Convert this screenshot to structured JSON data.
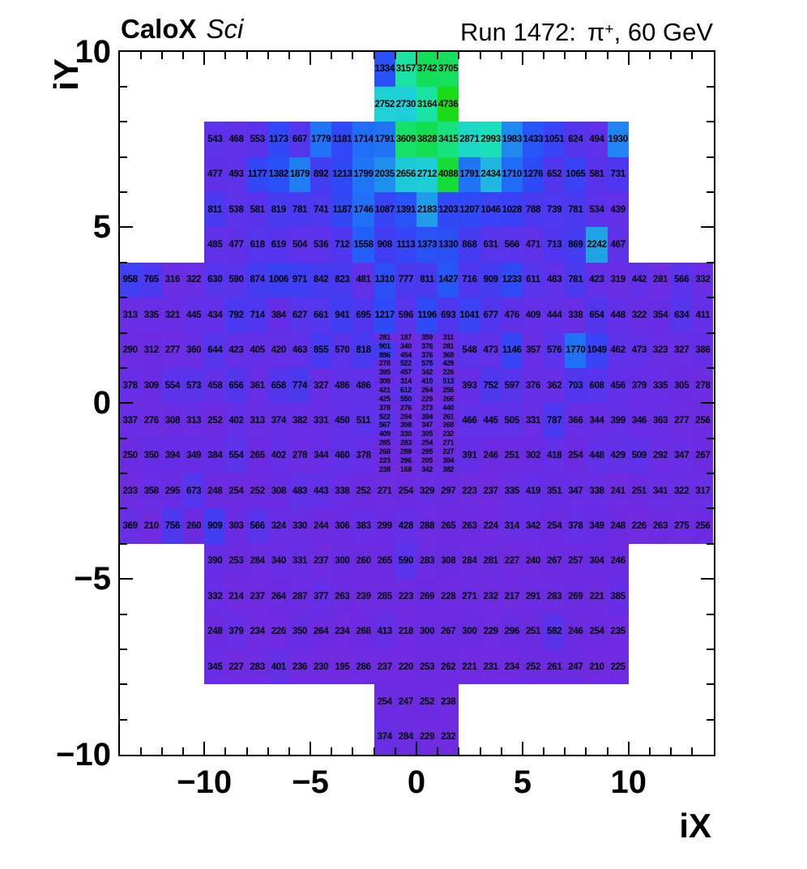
{
  "header": {
    "experiment": "CaloX",
    "experiment_sub": "Sci",
    "run": {
      "prefix": "Run 1472:",
      "particle": "π",
      "superscript": "+",
      "suffix": ", 60 GeV"
    }
  },
  "chart_data": {
    "type": "heatmap",
    "title_left": "CaloX Sci",
    "title_right": "Run 1472: π+, 60 GeV",
    "xlabel": "iX",
    "ylabel": "iY",
    "x_range": [
      -14,
      14
    ],
    "y_range": [
      -10,
      10
    ],
    "n_cols": 28,
    "n_rows": 20,
    "x_ticks": [
      -10,
      -5,
      0,
      5,
      10
    ],
    "y_ticks": [
      10,
      5,
      0,
      -5,
      -10
    ],
    "grid": false,
    "legend": "none",
    "text_color": "#000000",
    "palette_stops": [
      [
        0,
        "#7B2AD6"
      ],
      [
        250,
        "#6D2BE1"
      ],
      [
        500,
        "#5F31EA"
      ],
      [
        750,
        "#4D38F0"
      ],
      [
        1000,
        "#3C40F4"
      ],
      [
        1250,
        "#2E4BF7"
      ],
      [
        1500,
        "#2359F8"
      ],
      [
        1750,
        "#1F70F6"
      ],
      [
        2000,
        "#1F8BEF"
      ],
      [
        2250,
        "#20A4E5"
      ],
      [
        2500,
        "#1FBDDE"
      ],
      [
        2750,
        "#1DD1D5"
      ],
      [
        3000,
        "#1BDFB9"
      ],
      [
        3250,
        "#19E495"
      ],
      [
        3500,
        "#16E175"
      ],
      [
        3750,
        "#13DE58"
      ],
      [
        4000,
        "#14DC3D"
      ],
      [
        4300,
        "#17DB29"
      ],
      [
        4800,
        "#1CDB13"
      ]
    ],
    "rows": [
      {
        "iy": 9,
        "segments": [
          {
            "start_col": 12,
            "values": [
              1334,
              3157,
              3742,
              3705
            ]
          }
        ]
      },
      {
        "iy": 8,
        "segments": [
          {
            "start_col": 12,
            "values": [
              2752,
              2730,
              3164,
              4736
            ]
          }
        ]
      },
      {
        "iy": 7,
        "segments": [
          {
            "start_col": 4,
            "values": [
              543,
              468,
              553,
              1173,
              667,
              1779,
              1181,
              1714,
              1791,
              3609,
              3828,
              3415,
              2871,
              2993,
              1983,
              1433,
              1051,
              624,
              494,
              1930
            ]
          }
        ]
      },
      {
        "iy": 6,
        "segments": [
          {
            "start_col": 4,
            "values": [
              477,
              493,
              1177,
              1382,
              1879,
              892,
              1213,
              1799,
              2035,
              2656,
              2712,
              4088,
              1791,
              2434,
              1710,
              1276,
              652,
              1065,
              581,
              731
            ]
          }
        ]
      },
      {
        "iy": 5,
        "segments": [
          {
            "start_col": 4,
            "values": [
              811,
              538,
              581,
              819,
              781,
              741,
              1187,
              1746,
              1087,
              1391,
              2183,
              1203,
              1207,
              1046,
              1028,
              788,
              739,
              781,
              534,
              439
            ]
          }
        ]
      },
      {
        "iy": 4,
        "segments": [
          {
            "start_col": 4,
            "values": [
              485,
              477,
              618,
              619,
              504,
              536,
              712,
              1558,
              908,
              1113,
              1373,
              1330,
              868,
              631,
              566,
              471,
              713,
              869,
              2242,
              467
            ]
          }
        ]
      },
      {
        "iy": 3,
        "segments": [
          {
            "start_col": 0,
            "values": [
              958,
              765,
              316,
              322,
              630,
              590,
              874,
              1006,
              971,
              842,
              823,
              481,
              1310,
              777,
              811,
              1427,
              716,
              909,
              1233,
              611,
              483,
              781,
              423,
              319,
              442,
              281,
              566,
              332
            ]
          }
        ]
      },
      {
        "iy": 2,
        "segments": [
          {
            "start_col": 0,
            "values": [
              313,
              335,
              321,
              445,
              434,
              792,
              714,
              384,
              627,
              661,
              941,
              695,
              1217,
              596,
              1196,
              693,
              1041,
              677,
              476,
              409,
              444,
              338,
              654,
              448,
              322,
              354,
              634,
              411
            ]
          }
        ]
      },
      {
        "iy": 1,
        "segments": [
          {
            "start_col": 0,
            "values": [
              290,
              312,
              277,
              360,
              644,
              423,
              405,
              420,
              463,
              855,
              570,
              818
            ]
          },
          {
            "start_col": 16,
            "values": [
              548,
              473,
              1146,
              357,
              576,
              1770,
              1049,
              462,
              473,
              323,
              327,
              386
            ]
          }
        ]
      },
      {
        "iy": 0,
        "segments": [
          {
            "start_col": 0,
            "values": [
              378,
              309,
              554,
              573,
              458,
              656,
              361,
              658,
              774,
              327,
              486,
              486
            ]
          },
          {
            "start_col": 16,
            "values": [
              393,
              752,
              597,
              376,
              362,
              703,
              608,
              456,
              379,
              335,
              305,
              278
            ]
          }
        ]
      },
      {
        "iy": -1,
        "segments": [
          {
            "start_col": 0,
            "values": [
              337,
              276,
              308,
              313,
              252,
              402,
              313,
              374,
              382,
              331,
              450,
              511
            ]
          },
          {
            "start_col": 16,
            "values": [
              466,
              445,
              505,
              331,
              787,
              366,
              344,
              399,
              346,
              363,
              277,
              256
            ]
          }
        ]
      },
      {
        "iy": -2,
        "segments": [
          {
            "start_col": 0,
            "values": [
              250,
              350,
              394,
              349,
              384,
              554,
              265,
              402,
              278,
              344,
              460,
              378
            ]
          },
          {
            "start_col": 16,
            "values": [
              391,
              246,
              251,
              302,
              418,
              254,
              448,
              429,
              509,
              292,
              347,
              267
            ]
          }
        ]
      },
      {
        "iy": -3,
        "segments": [
          {
            "start_col": 0,
            "values": [
              233,
              358,
              295,
              673,
              248,
              254,
              252,
              308,
              483,
              443,
              338,
              252,
              271,
              254,
              329,
              297,
              223,
              237,
              335,
              419,
              351,
              347,
              338,
              241,
              251,
              341,
              322,
              317
            ]
          }
        ]
      },
      {
        "iy": -4,
        "segments": [
          {
            "start_col": 0,
            "values": [
              369,
              210,
              756,
              260,
              909,
              303,
              566,
              324,
              330,
              244,
              306,
              383,
              299,
              428,
              288,
              265,
              263,
              224,
              314,
              342,
              254,
              378,
              349,
              248,
              226,
              263,
              275,
              256
            ]
          }
        ]
      },
      {
        "iy": -5,
        "segments": [
          {
            "start_col": 4,
            "values": [
              390,
              253,
              284,
              340,
              331,
              237,
              300,
              260,
              265,
              590,
              283,
              308,
              284,
              281,
              227,
              240,
              267,
              257,
              304,
              246
            ]
          }
        ]
      },
      {
        "iy": -6,
        "segments": [
          {
            "start_col": 4,
            "values": [
              332,
              214,
              237,
              264,
              287,
              377,
              263,
              239,
              285,
              223,
              269,
              228,
              271,
              232,
              217,
              291,
              283,
              269,
              221,
              385
            ]
          }
        ]
      },
      {
        "iy": -7,
        "segments": [
          {
            "start_col": 4,
            "values": [
              248,
              379,
              234,
              226,
              350,
              264,
              234,
              268,
              413,
              218,
              300,
              267,
              300,
              229,
              296,
              251,
              582,
              246,
              254,
              235
            ]
          }
        ]
      },
      {
        "iy": -8,
        "segments": [
          {
            "start_col": 4,
            "values": [
              345,
              227,
              283,
              401,
              236,
              230,
              195,
              286,
              237,
              220,
              253,
              262,
              221,
              231,
              234,
              252,
              261,
              247,
              210,
              225
            ]
          }
        ]
      },
      {
        "iy": -9,
        "segments": [
          {
            "start_col": 12,
            "values": [
              254,
              247,
              252,
              238
            ]
          }
        ]
      },
      {
        "iy": -10,
        "segments": [
          {
            "start_col": 12,
            "values": [
              374,
              284,
              229,
              232
            ]
          }
        ]
      }
    ],
    "fine_region": {
      "start_col": 12,
      "start_iy": 1,
      "n_cols": 4,
      "sub_rows_per_row": 4,
      "values": [
        [
          281,
          187,
          359,
          311
        ],
        [
          901,
          340,
          376,
          281
        ],
        [
          896,
          454,
          376,
          368
        ],
        [
          278,
          522,
          575,
          429
        ],
        [
          395,
          457,
          342,
          226
        ],
        [
          308,
          314,
          410,
          513
        ],
        [
          421,
          612,
          264,
          256
        ],
        [
          425,
          550,
          229,
          266
        ],
        [
          378,
          276,
          273,
          440
        ],
        [
          522,
          284,
          384,
          261
        ],
        [
          567,
          398,
          347,
          268
        ],
        [
          409,
          330,
          305,
          232
        ],
        [
          285,
          283,
          254,
          271
        ],
        [
          268,
          289,
          295,
          227
        ],
        [
          223,
          296,
          205,
          304
        ],
        [
          238,
          168,
          342,
          382
        ]
      ]
    }
  }
}
